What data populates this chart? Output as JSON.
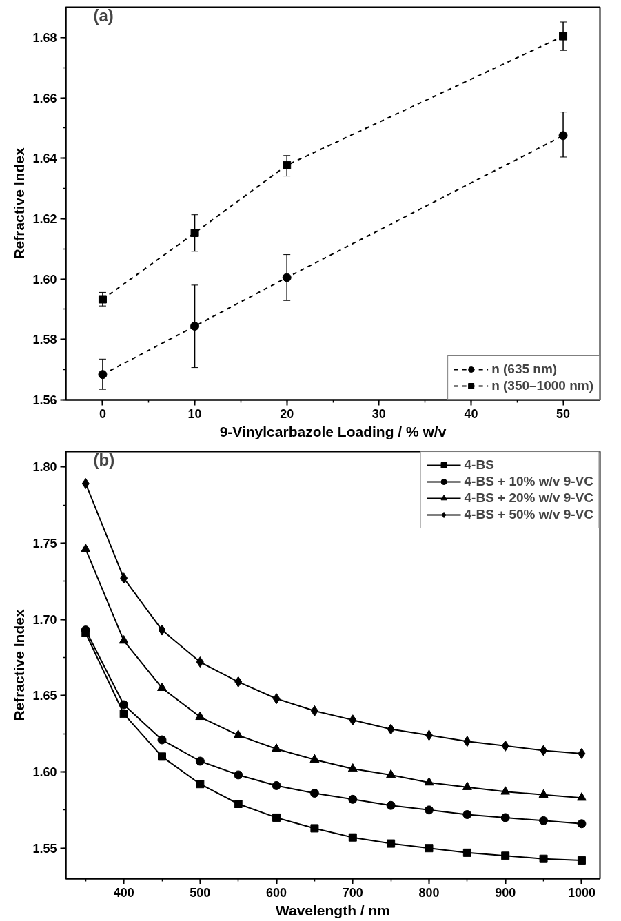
{
  "chart_data": [
    {
      "type": "line",
      "xlabel": "9-Vinylcarbazole Loading / % w/v",
      "ylabel": "Refractive Index",
      "annotations": [
        "(a)"
      ],
      "x": [
        0,
        10,
        20,
        50
      ],
      "xlim": [
        -4,
        54
      ],
      "xticks": [
        0,
        10,
        20,
        30,
        40,
        50
      ],
      "ylim": [
        1.56,
        1.69
      ],
      "yticks": [
        1.56,
        1.58,
        {
          "value": 1.6,
          "label": "1.60"
        },
        1.62,
        1.64,
        1.66,
        1.68
      ],
      "legend": "bottom right",
      "grid": false,
      "line_style": "dashed",
      "series": [
        {
          "name": "n (635 nm)",
          "color": "#000000",
          "marker": "circle",
          "values": [
            1.5684,
            1.5844,
            1.6005,
            1.6475
          ],
          "errors": [
            [
              1.5635,
              1.5735
            ],
            [
              1.5707,
              1.598
            ],
            [
              1.5929,
              1.6081
            ],
            [
              1.6404,
              1.6553
            ]
          ]
        },
        {
          "name": "n (350–1000 nm)",
          "color": "#000000",
          "marker": "square",
          "values": [
            1.5933,
            1.6153,
            1.6377,
            1.6804
          ],
          "errors": [
            [
              1.5911,
              1.5956
            ],
            [
              1.6092,
              1.6213
            ],
            [
              1.6341,
              1.6409
            ],
            [
              1.6757,
              1.6851
            ]
          ]
        }
      ]
    },
    {
      "type": "line",
      "xlabel": "Wavelength / nm",
      "ylabel": "Refractive Index",
      "annotations": [
        "(b)"
      ],
      "x": [
        350,
        400,
        450,
        500,
        550,
        600,
        650,
        700,
        750,
        800,
        850,
        900,
        950,
        1000
      ],
      "xlim": [
        324,
        1024
      ],
      "xticks": [
        400,
        500,
        600,
        700,
        800,
        900,
        1000
      ],
      "ylim": [
        1.53,
        1.81
      ],
      "yticks": [
        1.55,
        {
          "value": 1.6,
          "label": "1.60"
        },
        1.65,
        {
          "value": 1.7,
          "label": "1.70"
        },
        1.75,
        {
          "value": 1.8,
          "label": "1.80"
        }
      ],
      "legend": "top right",
      "grid": false,
      "line_style": "solid",
      "series": [
        {
          "name": "4-BS",
          "color": "#000000",
          "marker": "square",
          "values": [
            1.691,
            1.638,
            1.61,
            1.592,
            1.579,
            1.57,
            1.563,
            1.557,
            1.553,
            1.55,
            1.547,
            1.545,
            1.543,
            1.542
          ]
        },
        {
          "name": "4-BS + 10% w/v 9-VC",
          "color": "#000000",
          "marker": "circle",
          "values": [
            1.693,
            1.644,
            1.621,
            1.607,
            1.598,
            1.591,
            1.586,
            1.582,
            1.578,
            1.575,
            1.572,
            1.57,
            1.568,
            1.566
          ]
        },
        {
          "name": "4-BS + 20% w/v 9-VC",
          "color": "#000000",
          "marker": "triangle",
          "values": [
            1.746,
            1.686,
            1.655,
            1.636,
            1.624,
            1.615,
            1.608,
            1.602,
            1.598,
            1.593,
            1.59,
            1.587,
            1.585,
            1.583
          ]
        },
        {
          "name": "4-BS + 50% w/v 9-VC",
          "color": "#000000",
          "marker": "diamond",
          "values": [
            1.789,
            1.727,
            1.693,
            1.672,
            1.659,
            1.648,
            1.64,
            1.634,
            1.628,
            1.624,
            1.62,
            1.617,
            1.614,
            1.612
          ]
        }
      ]
    }
  ]
}
